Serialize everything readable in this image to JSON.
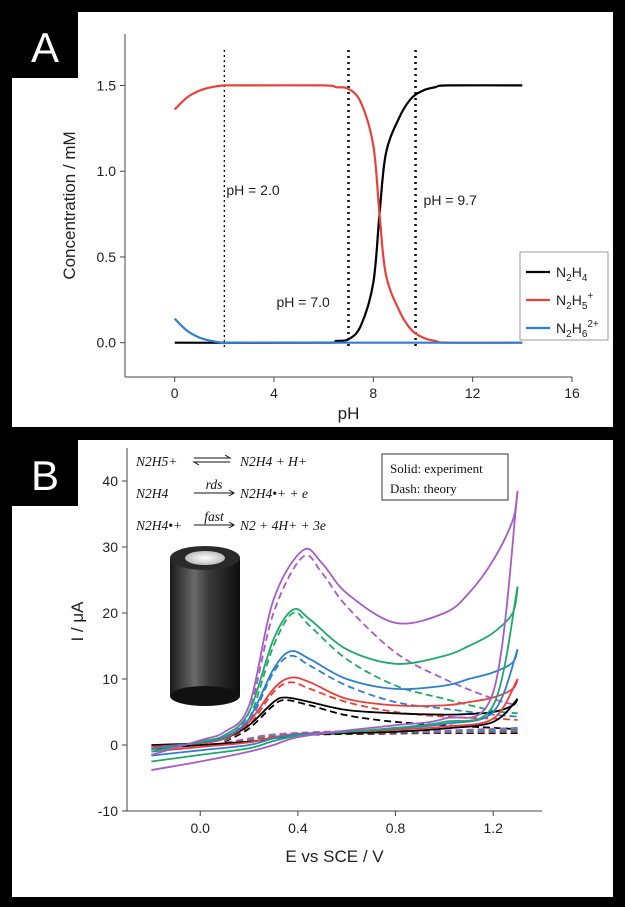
{
  "chart_data": [
    {
      "type": "line",
      "panel_label": "A",
      "xlabel": "pH",
      "ylabel": "Concentration / mM",
      "xlim": [
        -2,
        16
      ],
      "ylim": [
        -0.2,
        1.8
      ],
      "xticks": [
        0,
        4,
        8,
        12,
        16
      ],
      "yticks": [
        0.0,
        0.5,
        1.0,
        1.5
      ],
      "xtick_labels": [
        "0",
        "4",
        "8",
        "12",
        "16"
      ],
      "ytick_labels": [
        "0.0",
        "0.5",
        "1.0",
        "1.5"
      ],
      "grid": false,
      "legend_position": "bottom-right",
      "legend": [
        {
          "label": "N2H4",
          "main": "N",
          "sub1": "2",
          "mid": "H",
          "sub2": "4",
          "sup": "",
          "color": "#000000"
        },
        {
          "label": "N2H5+",
          "main": "N",
          "sub1": "2",
          "mid": "H",
          "sub2": "5",
          "sup": "+",
          "color": "#e8413c"
        },
        {
          "label": "N2H6 2+",
          "main": "N",
          "sub1": "2",
          "mid": "H",
          "sub2": "6",
          "sup": "2+",
          "color": "#2f7fd0"
        }
      ],
      "series": [
        {
          "name": "N2H4",
          "color": "#000000",
          "x": [
            0,
            6,
            6.5,
            7,
            7.5,
            8,
            8.25,
            8.5,
            9,
            9.5,
            10,
            10.5,
            11,
            14
          ],
          "y": [
            0,
            0,
            0.01,
            0.02,
            0.1,
            0.35,
            0.75,
            1.1,
            1.3,
            1.42,
            1.47,
            1.49,
            1.5,
            1.5
          ]
        },
        {
          "name": "N2H5+",
          "color": "#e8413c",
          "x": [
            0,
            0.5,
            1,
            1.5,
            2,
            3,
            6,
            6.5,
            7,
            7.5,
            8,
            8.25,
            8.5,
            9,
            9.5,
            10,
            10.5,
            11,
            14
          ],
          "y": [
            1.36,
            1.43,
            1.47,
            1.49,
            1.5,
            1.5,
            1.5,
            1.49,
            1.48,
            1.4,
            1.15,
            0.75,
            0.4,
            0.2,
            0.08,
            0.03,
            0.01,
            0,
            0
          ]
        },
        {
          "name": "N2H6 2+",
          "color": "#2f7fd0",
          "x": [
            0,
            0.5,
            1,
            1.5,
            2,
            3,
            14
          ],
          "y": [
            0.14,
            0.07,
            0.03,
            0.01,
            0,
            0,
            0
          ]
        }
      ],
      "vlines": [
        {
          "x": 2.0,
          "label": "pH = 2.0",
          "style": "fine-dotted"
        },
        {
          "x": 7.0,
          "label": "pH = 7.0",
          "style": "bold-dotted"
        },
        {
          "x": 9.7,
          "label": "pH = 9.7",
          "style": "bold-dotted"
        }
      ]
    },
    {
      "type": "line",
      "panel_label": "B",
      "xlabel": "E vs SCE / V",
      "ylabel": "I / μA",
      "xlim": [
        -0.3,
        1.4
      ],
      "ylim": [
        -10,
        45
      ],
      "xticks": [
        0.0,
        0.4,
        0.8,
        1.2
      ],
      "yticks": [
        -10,
        0,
        10,
        20,
        30,
        40
      ],
      "xtick_labels": [
        "0.0",
        "0.4",
        "0.8",
        "1.2"
      ],
      "ytick_labels": [
        "-10",
        "0",
        "10",
        "20",
        "30",
        "40"
      ],
      "grid": false,
      "legend_box": [
        "Solid: experiment",
        "Dash: theory"
      ],
      "equations": [
        {
          "lhs": "N2H5+",
          "arrow": "⇌",
          "arrow_label": "",
          "rhs": "N2H4 + H+"
        },
        {
          "lhs": "N2H4",
          "arrow": "→",
          "arrow_label": "rds",
          "rhs": "N2H4•+ + e"
        },
        {
          "lhs": "N2H4•+",
          "arrow": "→",
          "arrow_label": "fast",
          "rhs": "N2 + 4H+ + 3e"
        }
      ],
      "series": [
        {
          "name": "",
          "color": "#000000",
          "style": "solid",
          "forward_x": [
            -0.2,
            0.0,
            0.1,
            0.2,
            0.3,
            0.35,
            0.45,
            0.6,
            0.8,
            1.0,
            1.1,
            1.2,
            1.28,
            1.3
          ],
          "forward_y": [
            0,
            0.3,
            1,
            3,
            6.5,
            7.2,
            6.5,
            5.3,
            4.8,
            4.6,
            4.7,
            5,
            6,
            7
          ],
          "reverse_x": [
            1.3,
            1.2,
            1.0,
            0.8,
            0.6,
            0.4,
            0.3,
            0.2,
            0.0,
            -0.2
          ],
          "reverse_y": [
            7,
            3.5,
            2.5,
            2,
            1.8,
            1.5,
            1,
            0.5,
            0,
            -0.6
          ]
        },
        {
          "name": "",
          "color": "#e8413c",
          "style": "solid",
          "forward_x": [
            -0.2,
            0.0,
            0.1,
            0.2,
            0.3,
            0.37,
            0.45,
            0.6,
            0.8,
            1.0,
            1.1,
            1.2,
            1.28,
            1.3
          ],
          "forward_y": [
            -0.3,
            0.3,
            1,
            3.5,
            8.5,
            10.2,
            9.5,
            7,
            6,
            6,
            6.5,
            7.2,
            8.5,
            10
          ],
          "reverse_x": [
            1.3,
            1.2,
            1.0,
            0.8,
            0.6,
            0.4,
            0.3,
            0.2,
            0.0,
            -0.2
          ],
          "reverse_y": [
            10,
            4,
            2.8,
            2.3,
            2,
            1.7,
            1.2,
            0.4,
            -0.3,
            -1.0
          ]
        },
        {
          "name": "",
          "color": "#2f7fd0",
          "style": "solid",
          "forward_x": [
            -0.2,
            0.0,
            0.1,
            0.2,
            0.3,
            0.37,
            0.45,
            0.6,
            0.8,
            1.0,
            1.1,
            1.2,
            1.28,
            1.3
          ],
          "forward_y": [
            -0.6,
            0.4,
            1.2,
            4,
            11.5,
            14.2,
            13,
            10,
            8.5,
            9,
            10,
            11,
            12.5,
            14.5
          ],
          "reverse_x": [
            1.3,
            1.2,
            1.0,
            0.8,
            0.6,
            0.4,
            0.3,
            0.2,
            0.0,
            -0.2
          ],
          "reverse_y": [
            14.5,
            5,
            3.2,
            2.5,
            2,
            1.6,
            1,
            0,
            -0.8,
            -1.6
          ]
        },
        {
          "name": "",
          "color": "#1fa86a",
          "style": "solid",
          "forward_x": [
            -0.2,
            0.0,
            0.1,
            0.2,
            0.3,
            0.38,
            0.45,
            0.6,
            0.8,
            1.0,
            1.1,
            1.2,
            1.28,
            1.3
          ],
          "forward_y": [
            -1.0,
            0.5,
            1.5,
            5,
            16,
            20.5,
            19,
            14.5,
            12.3,
            13.5,
            15,
            17,
            20,
            24
          ],
          "reverse_x": [
            1.3,
            1.2,
            1.0,
            0.8,
            0.6,
            0.4,
            0.3,
            0.2,
            0.0,
            -0.2
          ],
          "reverse_y": [
            24,
            6,
            3.5,
            2.6,
            2,
            1.4,
            0.6,
            -0.5,
            -1.5,
            -2.5
          ]
        },
        {
          "name": "",
          "color": "#a65cc8",
          "style": "solid",
          "forward_x": [
            -0.2,
            0.0,
            0.1,
            0.2,
            0.3,
            0.42,
            0.5,
            0.6,
            0.8,
            1.0,
            1.1,
            1.2,
            1.28,
            1.3
          ],
          "forward_y": [
            -1.5,
            0.7,
            2,
            6,
            22,
            29.5,
            27.5,
            23,
            18.5,
            20,
            23,
            28,
            34,
            38.5
          ],
          "reverse_x": [
            1.3,
            1.2,
            1.0,
            0.8,
            0.6,
            0.4,
            0.3,
            0.2,
            0.0,
            -0.2
          ],
          "reverse_y": [
            38.5,
            8,
            4,
            3,
            2.2,
            1.2,
            0,
            -1,
            -2.5,
            -3.8
          ]
        },
        {
          "name": "",
          "color": "#000000",
          "style": "dashed",
          "forward_x": [
            0.1,
            0.2,
            0.3,
            0.35,
            0.45,
            0.6,
            0.8,
            1.0,
            1.2,
            1.3
          ],
          "forward_y": [
            0.5,
            2.5,
            6,
            6.8,
            6,
            4.5,
            3.5,
            3,
            2.6,
            2.4
          ],
          "reverse_x": [
            1.3,
            1.0,
            0.7,
            0.5,
            0.3,
            0.2,
            0.1
          ],
          "reverse_y": [
            1.8,
            1.8,
            1.7,
            1.6,
            1.3,
            0.8,
            0.3
          ]
        },
        {
          "name": "",
          "color": "#e8413c",
          "style": "dashed",
          "forward_x": [
            0.1,
            0.2,
            0.3,
            0.37,
            0.45,
            0.6,
            0.8,
            1.0,
            1.2,
            1.3
          ],
          "forward_y": [
            0.6,
            3,
            8,
            9.5,
            8.5,
            6.5,
            5,
            4.3,
            4,
            3.8
          ],
          "reverse_x": [
            1.3,
            1.0,
            0.7,
            0.5,
            0.3,
            0.2,
            0.1
          ],
          "reverse_y": [
            2,
            1.9,
            1.8,
            1.7,
            1.4,
            0.8,
            0.3
          ]
        },
        {
          "name": "",
          "color": "#2f7fd0",
          "style": "dashed",
          "forward_x": [
            0.1,
            0.2,
            0.3,
            0.37,
            0.45,
            0.6,
            0.8,
            1.0,
            1.2,
            1.3
          ],
          "forward_y": [
            0.7,
            3.5,
            11,
            13.5,
            12,
            9,
            6.5,
            5.5,
            4.6,
            4.3
          ],
          "reverse_x": [
            1.3,
            1.0,
            0.7,
            0.5,
            0.3,
            0.2,
            0.1
          ],
          "reverse_y": [
            2.2,
            2,
            1.9,
            1.8,
            1.5,
            0.9,
            0.3
          ]
        },
        {
          "name": "",
          "color": "#1fa86a",
          "style": "dashed",
          "forward_x": [
            0.1,
            0.2,
            0.3,
            0.38,
            0.45,
            0.6,
            0.8,
            1.0,
            1.2,
            1.3
          ],
          "forward_y": [
            0.8,
            4,
            15,
            20,
            18,
            13,
            9,
            7,
            5.2,
            4.8
          ],
          "reverse_x": [
            1.3,
            1.0,
            0.7,
            0.5,
            0.3,
            0.2,
            0.1
          ],
          "reverse_y": [
            2.4,
            2.1,
            2,
            1.9,
            1.5,
            0.9,
            0.3
          ]
        },
        {
          "name": "",
          "color": "#a65cc8",
          "style": "dashed",
          "forward_x": [
            0.1,
            0.2,
            0.3,
            0.42,
            0.5,
            0.6,
            0.8,
            1.0,
            1.2,
            1.3
          ],
          "forward_y": [
            1,
            5,
            20,
            28.5,
            26,
            21,
            14,
            10,
            7,
            6
          ],
          "reverse_x": [
            1.3,
            1.0,
            0.7,
            0.5,
            0.3,
            0.2,
            0.1
          ],
          "reverse_y": [
            2.6,
            2.2,
            2.1,
            2,
            1.6,
            1,
            0.3
          ]
        }
      ]
    }
  ]
}
